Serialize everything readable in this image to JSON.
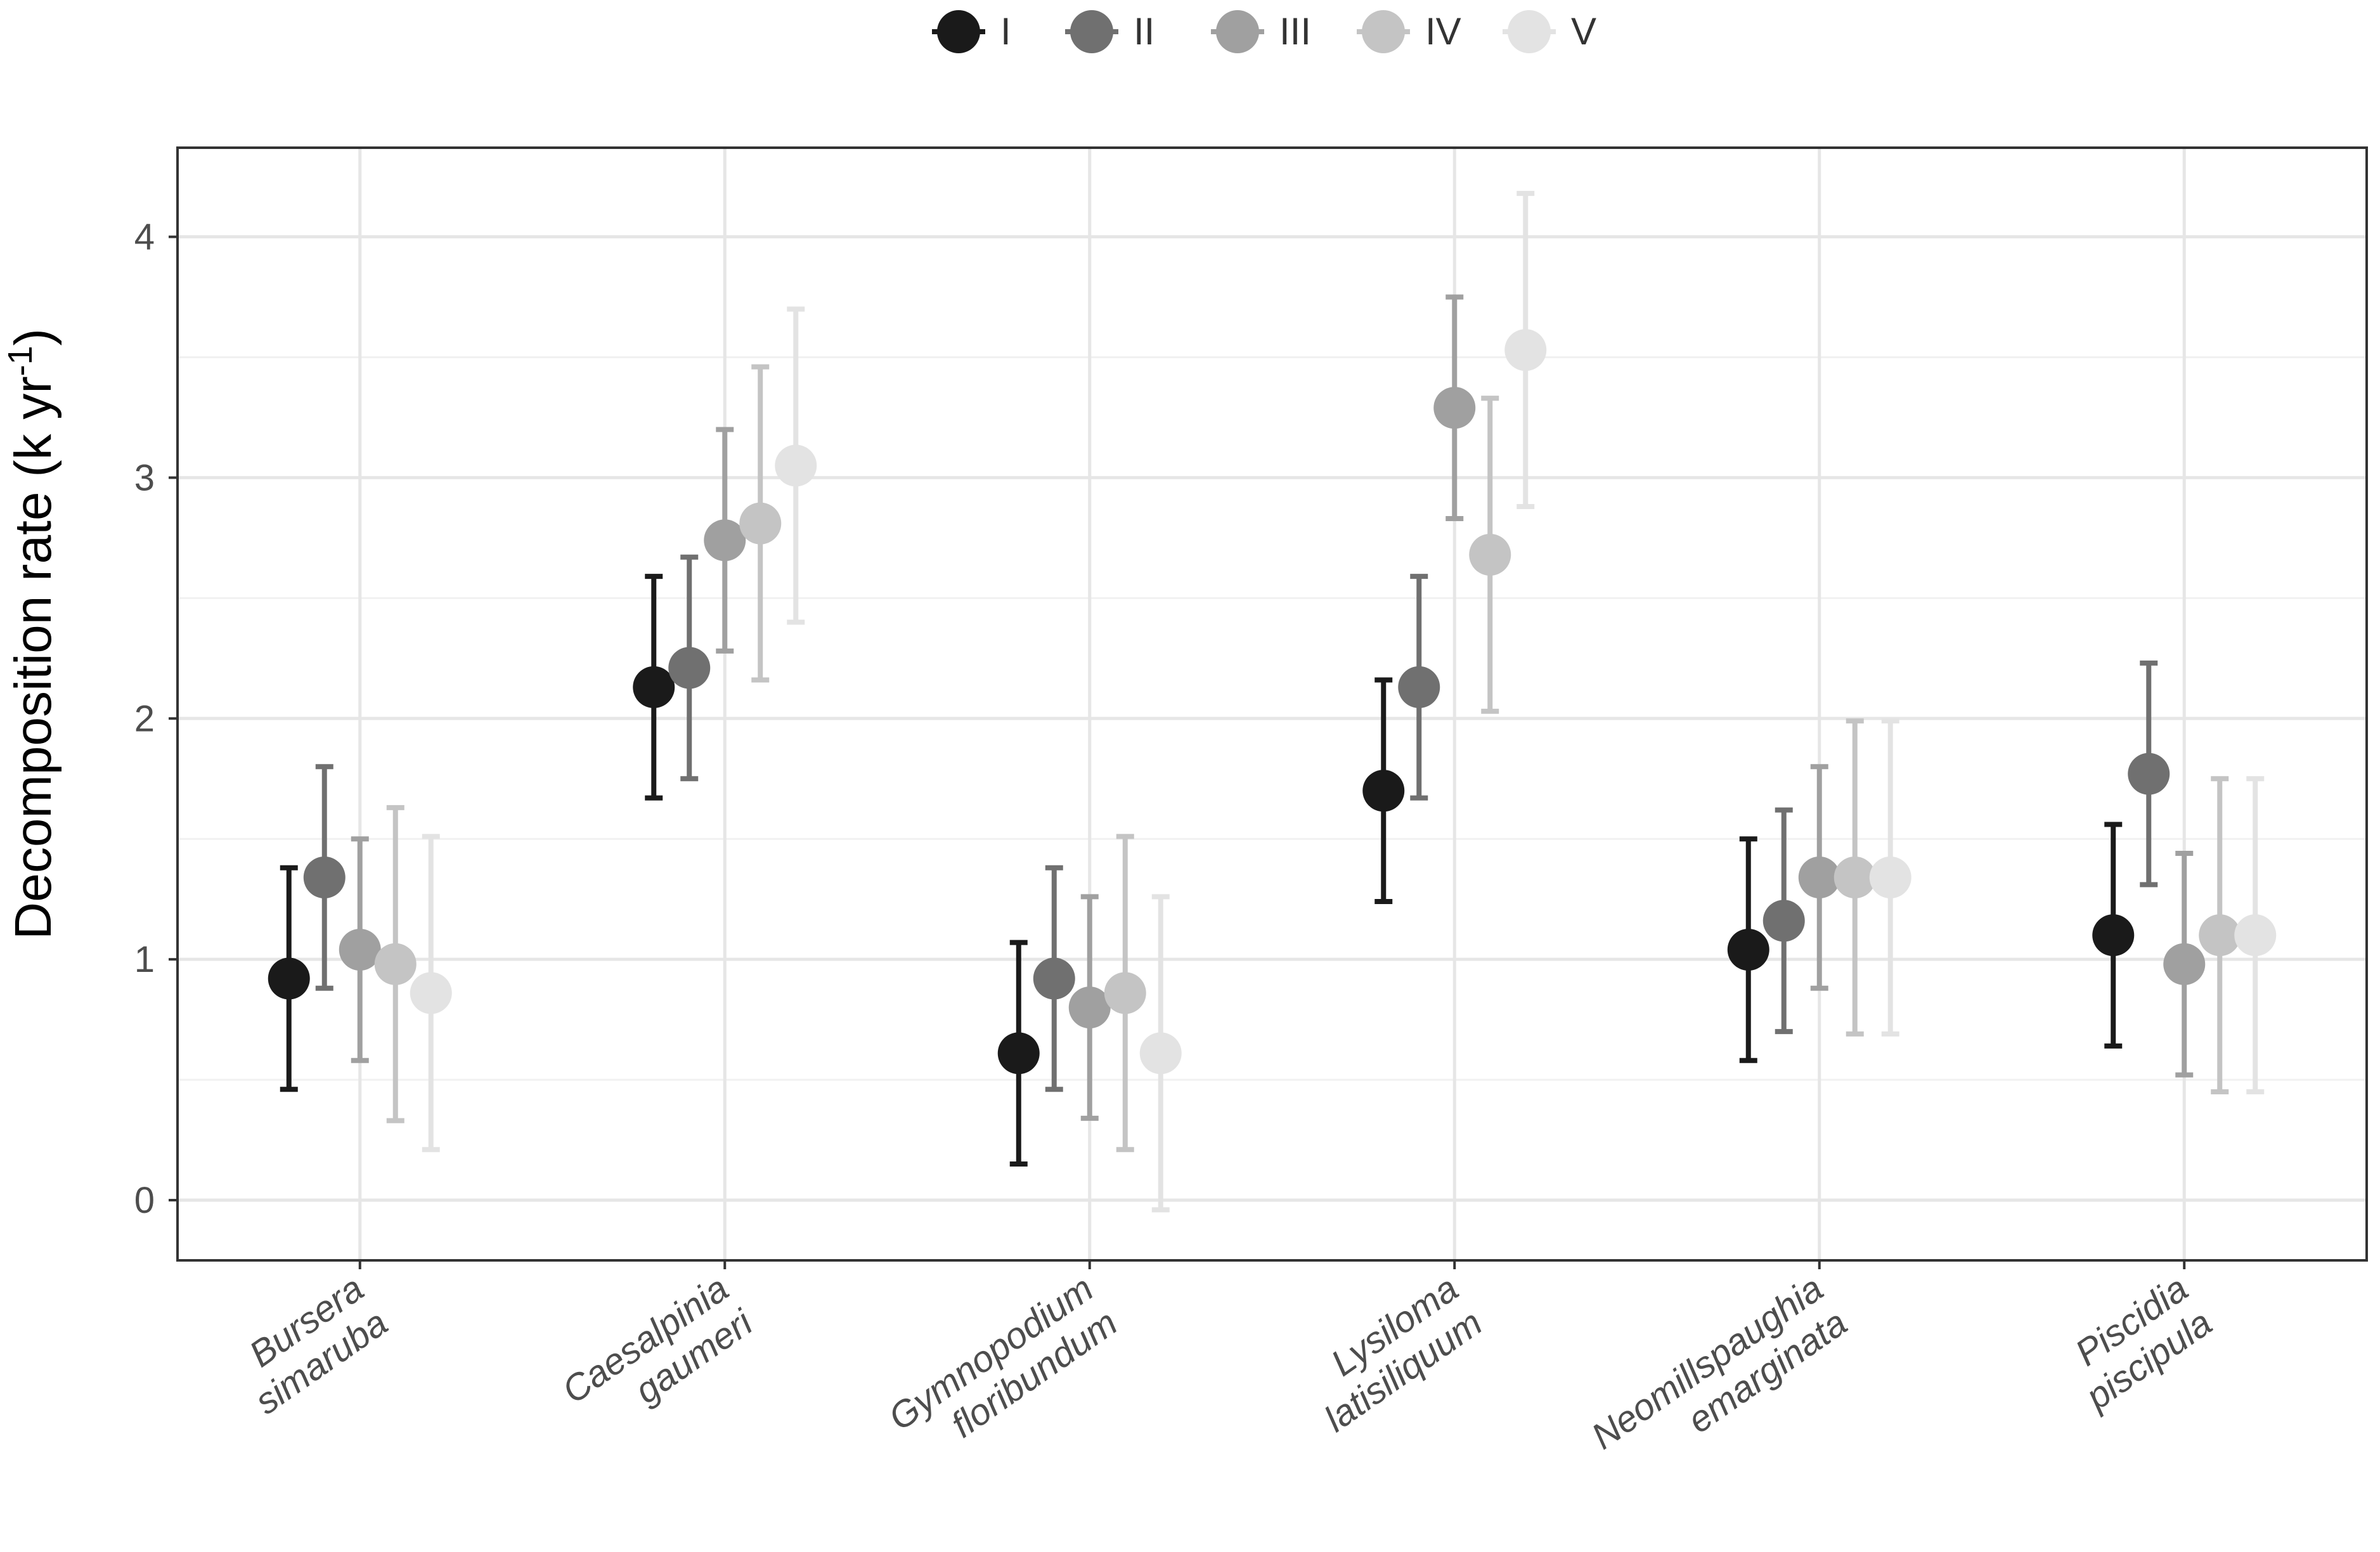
{
  "chart_data": {
    "type": "scatter",
    "subtype": "point-with-error-bars",
    "ylabel_main": "Decomposition rate (k yr",
    "ylabel_sup": "-1",
    "ylabel_close": ")",
    "xlabel": "",
    "ylim": [
      -0.25,
      4.37
    ],
    "y_ticks": [
      0,
      1,
      2,
      3,
      4
    ],
    "grid": true,
    "legend_position": "top",
    "categories": [
      {
        "line1": "Bursera",
        "line2": "simaruba"
      },
      {
        "line1": "Caesalpinia",
        "line2": "gaumeri"
      },
      {
        "line1": "Gymnopodium",
        "line2": "floribundum"
      },
      {
        "line1": "Lysiloma",
        "line2": "latisiliquum"
      },
      {
        "line1": "Neomillspaughia",
        "line2": "emarginata"
      },
      {
        "line1": "Piscidia",
        "line2": "piscipula"
      }
    ],
    "series": [
      {
        "name": "I",
        "color": "#1a1a1a",
        "values": [
          0.92,
          2.13,
          0.61,
          1.7,
          1.04,
          1.1
        ],
        "lower": [
          0.46,
          1.67,
          0.15,
          1.24,
          0.58,
          0.64
        ],
        "upper": [
          1.38,
          2.59,
          1.07,
          2.16,
          1.5,
          1.56
        ]
      },
      {
        "name": "II",
        "color": "#707070",
        "values": [
          1.34,
          2.21,
          0.92,
          2.13,
          1.16,
          1.77
        ],
        "lower": [
          0.88,
          1.75,
          0.46,
          1.67,
          0.7,
          1.31
        ],
        "upper": [
          1.8,
          2.67,
          1.38,
          2.59,
          1.62,
          2.23
        ]
      },
      {
        "name": "III",
        "color": "#a0a0a0",
        "values": [
          1.04,
          2.74,
          0.8,
          3.29,
          1.34,
          0.98
        ],
        "lower": [
          0.58,
          2.28,
          0.34,
          2.83,
          0.88,
          0.52
        ],
        "upper": [
          1.5,
          3.2,
          1.26,
          3.75,
          1.8,
          1.44
        ]
      },
      {
        "name": "IV",
        "color": "#c4c4c4",
        "values": [
          0.98,
          2.81,
          0.86,
          2.68,
          1.34,
          1.1
        ],
        "lower": [
          0.33,
          2.16,
          0.21,
          2.03,
          0.69,
          0.45
        ],
        "upper": [
          1.63,
          3.46,
          1.51,
          3.33,
          1.99,
          1.75
        ]
      },
      {
        "name": "V",
        "color": "#e3e3e3",
        "values": [
          0.86,
          3.05,
          0.61,
          3.53,
          1.34,
          1.1
        ],
        "lower": [
          0.21,
          2.4,
          -0.04,
          2.88,
          0.69,
          0.45
        ],
        "upper": [
          1.51,
          3.7,
          1.26,
          4.18,
          1.99,
          1.75
        ]
      }
    ]
  }
}
